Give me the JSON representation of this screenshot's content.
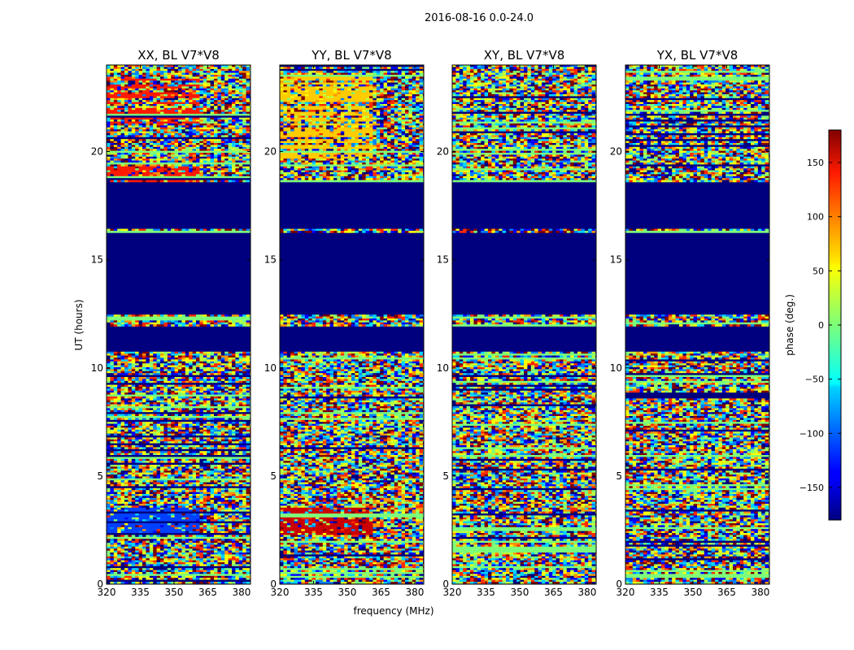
{
  "chart_data": {
    "type": "heatmap",
    "title": "2016-08-16 0.0-24.0",
    "xlabel": "frequency (MHz)",
    "ylabel": "UT (hours)",
    "xlim": [
      320,
      384
    ],
    "ylim": [
      0,
      24
    ],
    "xticks": [
      320,
      335,
      350,
      365,
      380
    ],
    "yticks": [
      0,
      5,
      10,
      15,
      20
    ],
    "panels": [
      {
        "title": "XX, BL V7*V8",
        "pol": "XX"
      },
      {
        "title": "YY, BL V7*V8",
        "pol": "YY"
      },
      {
        "title": "XY, BL V7*V8",
        "pol": "XY"
      },
      {
        "title": "YX, BL V7*V8",
        "pol": "YX"
      }
    ],
    "flagged_ut_ranges": [
      [
        12.5,
        16.3
      ],
      [
        10.8,
        12.0
      ],
      [
        16.5,
        18.6
      ]
    ],
    "colorbar": {
      "label": "phase (deg.)",
      "range": [
        -180,
        180
      ],
      "ticks": [
        -150,
        -100,
        -50,
        0,
        50,
        100,
        150
      ],
      "tick_labels": [
        "−150",
        "−100",
        "−50",
        "0",
        "50",
        "100",
        "150"
      ],
      "colormap": "jet"
    },
    "colors": {
      "flagged": "#00007f",
      "noise_mix": [
        "#00007f",
        "#0000ff",
        "#0080ff",
        "#00d4ff",
        "#7dff7a",
        "#c1ff3a",
        "#ffff00",
        "#ff9400",
        "#ff2a00",
        "#800000"
      ],
      "xx_low_band": "#0040ff",
      "xx_high_band": "#ff1a00",
      "yy_low_band": "#cc0000",
      "yy_high_band": "#ffcc00"
    }
  }
}
